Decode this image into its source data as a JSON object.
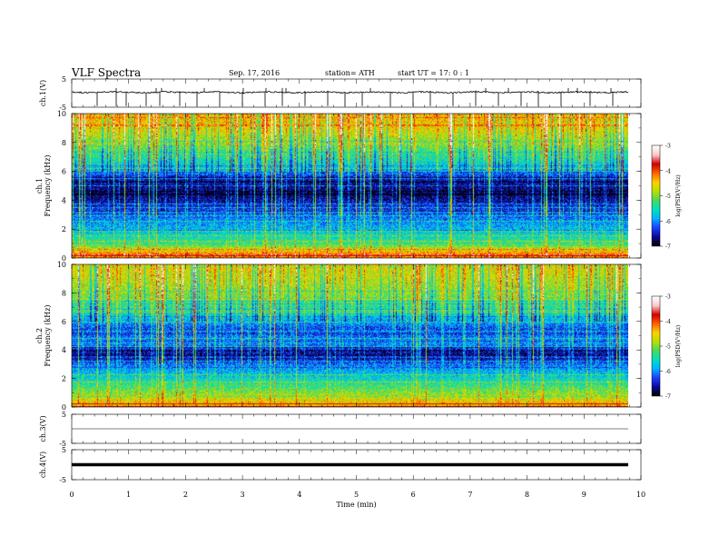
{
  "header": {
    "title": "VLF  Spectra",
    "date": "Sep. 17, 2016",
    "station": "station= ATH",
    "start": "start  UT  =   17: 0  : 1"
  },
  "chart_data": [
    {
      "type": "line",
      "panel": "ch1-waveform",
      "ylabel": "ch.1(V)",
      "ylim": [
        -5,
        5
      ],
      "yticks": [
        "5",
        "-5"
      ],
      "xlim": [
        0,
        10
      ],
      "baseline_level_v": 0.3,
      "spikes_min": [
        0.45,
        0.78,
        0.95,
        1.3,
        1.55,
        1.9,
        2.2,
        2.6,
        3.0,
        3.4,
        3.7,
        4.1,
        4.5,
        4.8,
        5.1,
        5.6,
        6.0,
        6.3,
        6.7,
        7.1,
        7.5,
        7.9,
        8.2,
        8.6,
        9.1,
        9.5
      ]
    },
    {
      "type": "heatmap",
      "panel": "ch1-spectrogram",
      "ylabel": "ch.1\nFrequency  (kHz)",
      "ylim": [
        0,
        10
      ],
      "yticks": [
        "0",
        "2",
        "4",
        "6",
        "8",
        "10"
      ],
      "xlim": [
        0,
        10
      ],
      "colorbar_label": "log(PSD(V²/Hz)",
      "colorbar_range": [
        -7,
        -3
      ],
      "colorbar_ticks": [
        "-3",
        "-4",
        "-5",
        "-6",
        "-7"
      ],
      "band_profile_khz": [
        [
          0.3,
          -4.2
        ],
        [
          1.0,
          -5.3
        ],
        [
          2.0,
          -5.8
        ],
        [
          3.0,
          -6.2
        ],
        [
          4.5,
          -6.8
        ],
        [
          5.6,
          -6.5
        ],
        [
          6.2,
          -5.8
        ],
        [
          7.0,
          -5.4
        ],
        [
          9.0,
          -4.6
        ],
        [
          10.0,
          -4.4
        ]
      ]
    },
    {
      "type": "heatmap",
      "panel": "ch2-spectrogram",
      "ylabel": "ch.2\nFrequency  (kHz)",
      "ylim": [
        0,
        10
      ],
      "yticks": [
        "0",
        "2",
        "4",
        "6",
        "8",
        "10"
      ],
      "xlim": [
        0,
        10
      ],
      "colorbar_label": "log(PSD(V²/Hz)",
      "colorbar_range": [
        -7,
        -3
      ],
      "colorbar_ticks": [
        "-3",
        "-4",
        "-5",
        "-6",
        "-7"
      ],
      "band_profile_khz": [
        [
          0.3,
          -4.5
        ],
        [
          1.0,
          -5.0
        ],
        [
          2.0,
          -5.6
        ],
        [
          3.0,
          -6.1
        ],
        [
          3.6,
          -6.8
        ],
        [
          4.5,
          -6.0
        ],
        [
          5.5,
          -6.3
        ],
        [
          6.5,
          -5.6
        ],
        [
          8.0,
          -5.0
        ],
        [
          10.0,
          -4.6
        ]
      ]
    },
    {
      "type": "line",
      "panel": "ch3-waveform",
      "ylabel": "ch.3(V)",
      "ylim": [
        -5,
        5
      ],
      "yticks": [
        "5",
        "-5"
      ],
      "xlim": [
        0,
        10
      ],
      "baseline_level_v": 0
    },
    {
      "type": "line",
      "panel": "ch4-waveform",
      "ylabel": "ch.4(V)",
      "ylim": [
        -5,
        5
      ],
      "yticks": [
        "5",
        "-5"
      ],
      "xlim": [
        0,
        10
      ],
      "baseline_level_v": 0,
      "xlabel": "Time  (min)",
      "xticks": [
        "0",
        "1",
        "2",
        "3",
        "4",
        "5",
        "6",
        "7",
        "8",
        "9",
        "10"
      ]
    }
  ],
  "colors": {
    "colormap": [
      "#000000",
      "#0a0aa0",
      "#1f3fff",
      "#00b4ff",
      "#00e0c0",
      "#4cd85c",
      "#b8e000",
      "#ffd000",
      "#ff6000",
      "#d00000",
      "#ffc8c8",
      "#ffffff"
    ],
    "axis": "#000000",
    "waveform": "#000000"
  }
}
